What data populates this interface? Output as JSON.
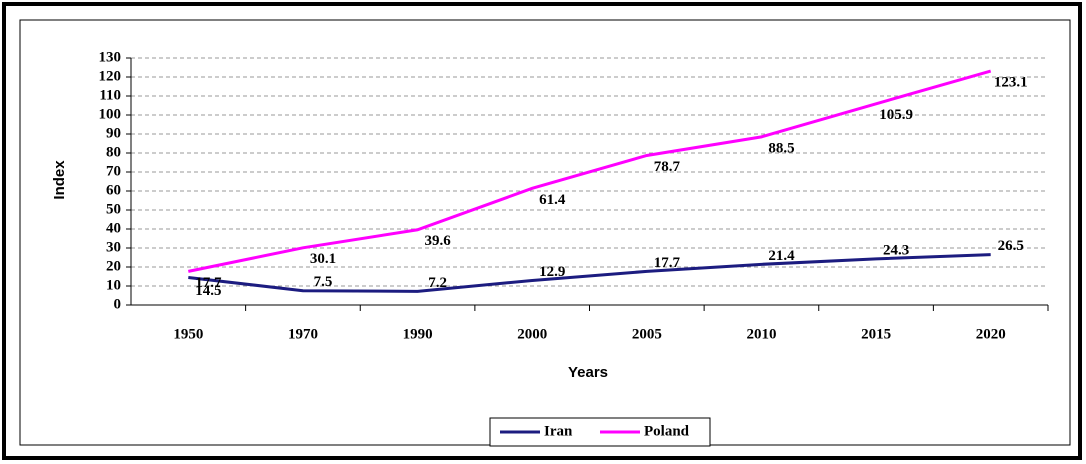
{
  "chart_data": {
    "type": "line",
    "x_label": "Years",
    "y_label": "Index",
    "categories": [
      "1950",
      "1970",
      "1990",
      "2000",
      "2005",
      "2010",
      "2015",
      "2020"
    ],
    "series": [
      {
        "name": "Iran",
        "color": "#1c1c80",
        "values": [
          14.5,
          7.5,
          7.2,
          12.9,
          17.7,
          21.4,
          24.3,
          26.5
        ]
      },
      {
        "name": "Poland",
        "color": "#ff00ff",
        "values": [
          17.7,
          30.1,
          39.6,
          61.4,
          78.7,
          88.5,
          105.9,
          123.1
        ]
      }
    ],
    "ylim": [
      0,
      130
    ],
    "yticks": [
      0,
      10,
      20,
      30,
      40,
      50,
      60,
      70,
      80,
      90,
      100,
      110,
      120,
      130
    ],
    "grid": true,
    "legend": "bottom"
  }
}
